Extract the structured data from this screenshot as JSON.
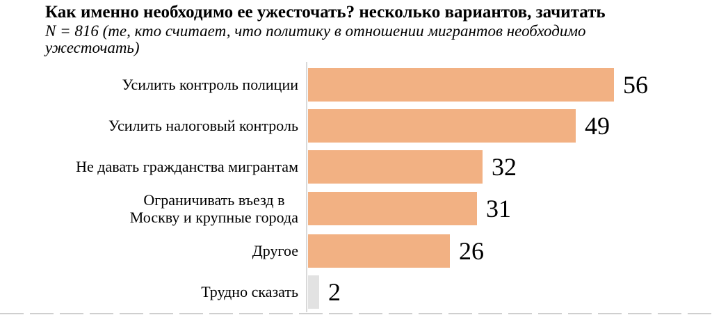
{
  "header": {
    "title": "Как именно необходимо ее ужесточать? несколько вариантов, зачитать",
    "subtitle": "N = 816 (те, кто считает, что политику в отношении мигрантов необходимо ужесточать)"
  },
  "chart_data": {
    "type": "bar",
    "orientation": "horizontal",
    "title": "Как именно необходимо ее ужесточать? несколько вариантов, зачитать",
    "subtitle": "N = 816 (те, кто считает, что политику в отношении мигрантов необходимо ужесточать)",
    "categories": [
      "Усилить контроль полиции",
      "Усилить налоговый контроль",
      "Не давать гражданства мигрантам",
      "Ограничивать въезд в Москву и крупные города",
      "Другое",
      "Трудно сказать"
    ],
    "categories_display": [
      "Усилить контроль полиции",
      "Усилить налоговый контроль",
      "Не давать гражданства мигрантам",
      "Ограничивать въезд в\nМоскву и крупные города",
      "Другое",
      "Трудно сказать"
    ],
    "values": [
      56,
      49,
      32,
      31,
      26,
      2
    ],
    "bar_colors": [
      "#F2B183",
      "#F2B183",
      "#F2B183",
      "#F2B183",
      "#F2B183",
      "#E2E2E2"
    ],
    "xlim": [
      0,
      60
    ],
    "value_labels_shown": true,
    "grid": false,
    "legend": false,
    "axis_line_color": "#D9D9D9",
    "value_label_color": "#000000"
  }
}
